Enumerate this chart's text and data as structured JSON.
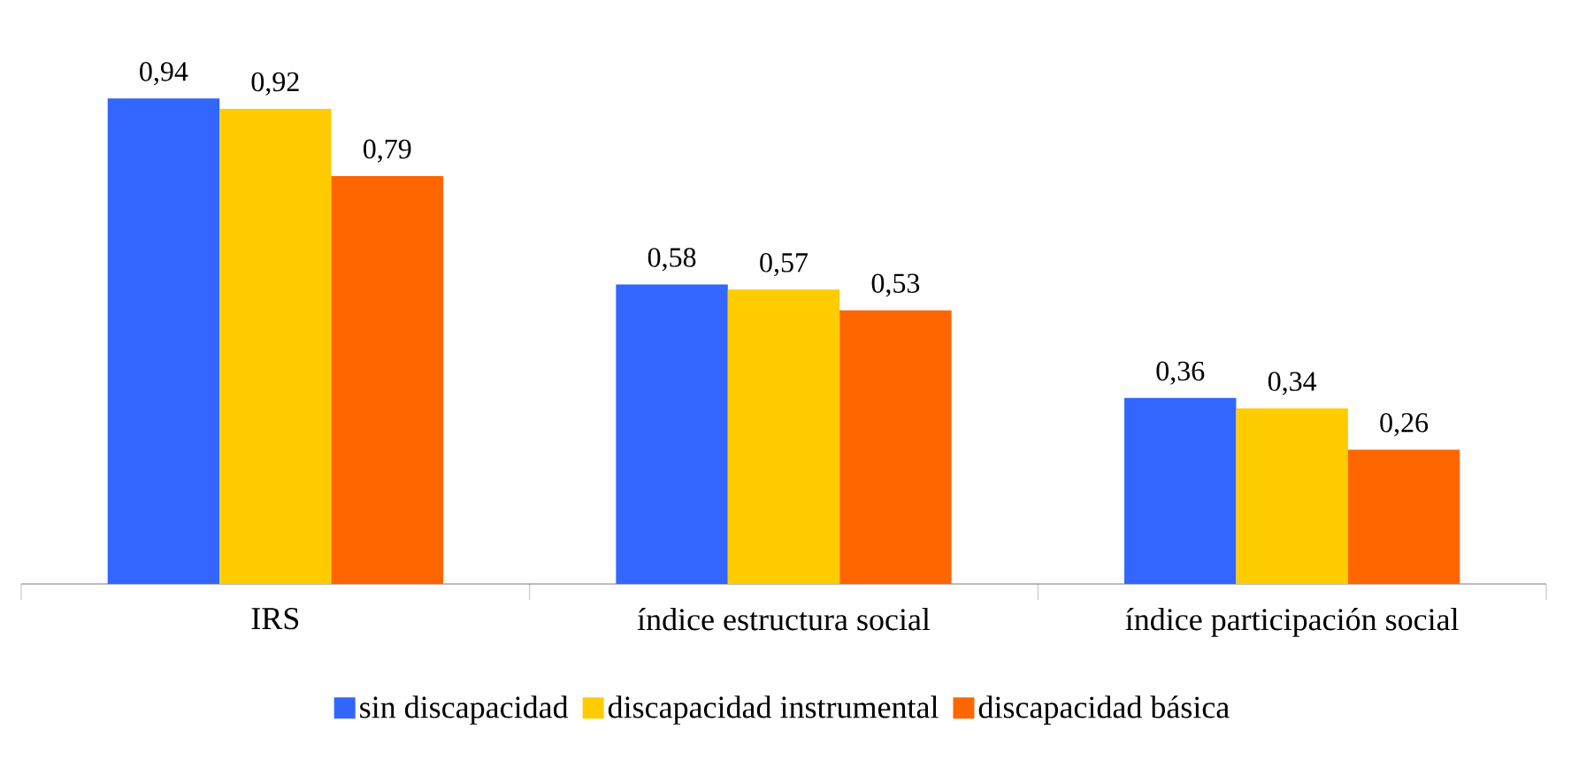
{
  "chart_data": {
    "type": "bar",
    "categories": [
      "IRS",
      "índice estructura social",
      "índice participación social"
    ],
    "series": [
      {
        "name": "sin discapacidad",
        "color": "#3366ff",
        "values": [
          0.94,
          0.58,
          0.36
        ],
        "value_labels": [
          "0,94",
          "0,58",
          "0,36"
        ]
      },
      {
        "name": "discapacidad instrumental",
        "color": "#ffcc00",
        "values": [
          0.92,
          0.57,
          0.34
        ],
        "value_labels": [
          "0,92",
          "0,57",
          "0,34"
        ]
      },
      {
        "name": "discapacidad básica",
        "color": "#ff6600",
        "values": [
          0.79,
          0.53,
          0.26
        ],
        "value_labels": [
          "0,79",
          "0,53",
          "0,26"
        ]
      }
    ],
    "legend": "bottom"
  }
}
